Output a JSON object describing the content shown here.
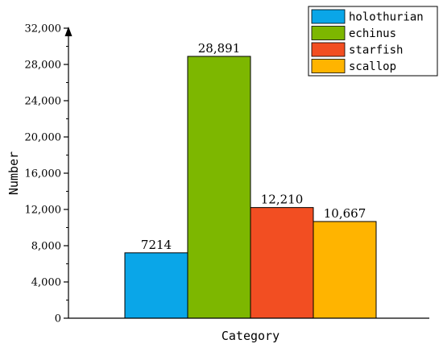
{
  "chart_data": {
    "type": "bar",
    "title": "",
    "xlabel": "Category",
    "ylabel": "Number",
    "ylim": [
      0,
      32000
    ],
    "y_ticks": [
      0,
      4000,
      8000,
      12000,
      16000,
      20000,
      24000,
      28000,
      32000
    ],
    "y_tick_labels": [
      "0",
      "4,000",
      "8,000",
      "12,000",
      "16,000",
      "20,000",
      "24,000",
      "28,000",
      "32,000"
    ],
    "grid": false,
    "legend_position": "top-right",
    "series": [
      {
        "name": "holothurian",
        "value": 7214,
        "label": "7214",
        "color": "#0AA6E8"
      },
      {
        "name": "echinus",
        "value": 28891,
        "label": "28,891",
        "color": "#7DB700"
      },
      {
        "name": "starfish",
        "value": 12210,
        "label": "12,210",
        "color": "#F24E22"
      },
      {
        "name": "scallop",
        "value": 10667,
        "label": "10,667",
        "color": "#FFB400"
      }
    ]
  }
}
